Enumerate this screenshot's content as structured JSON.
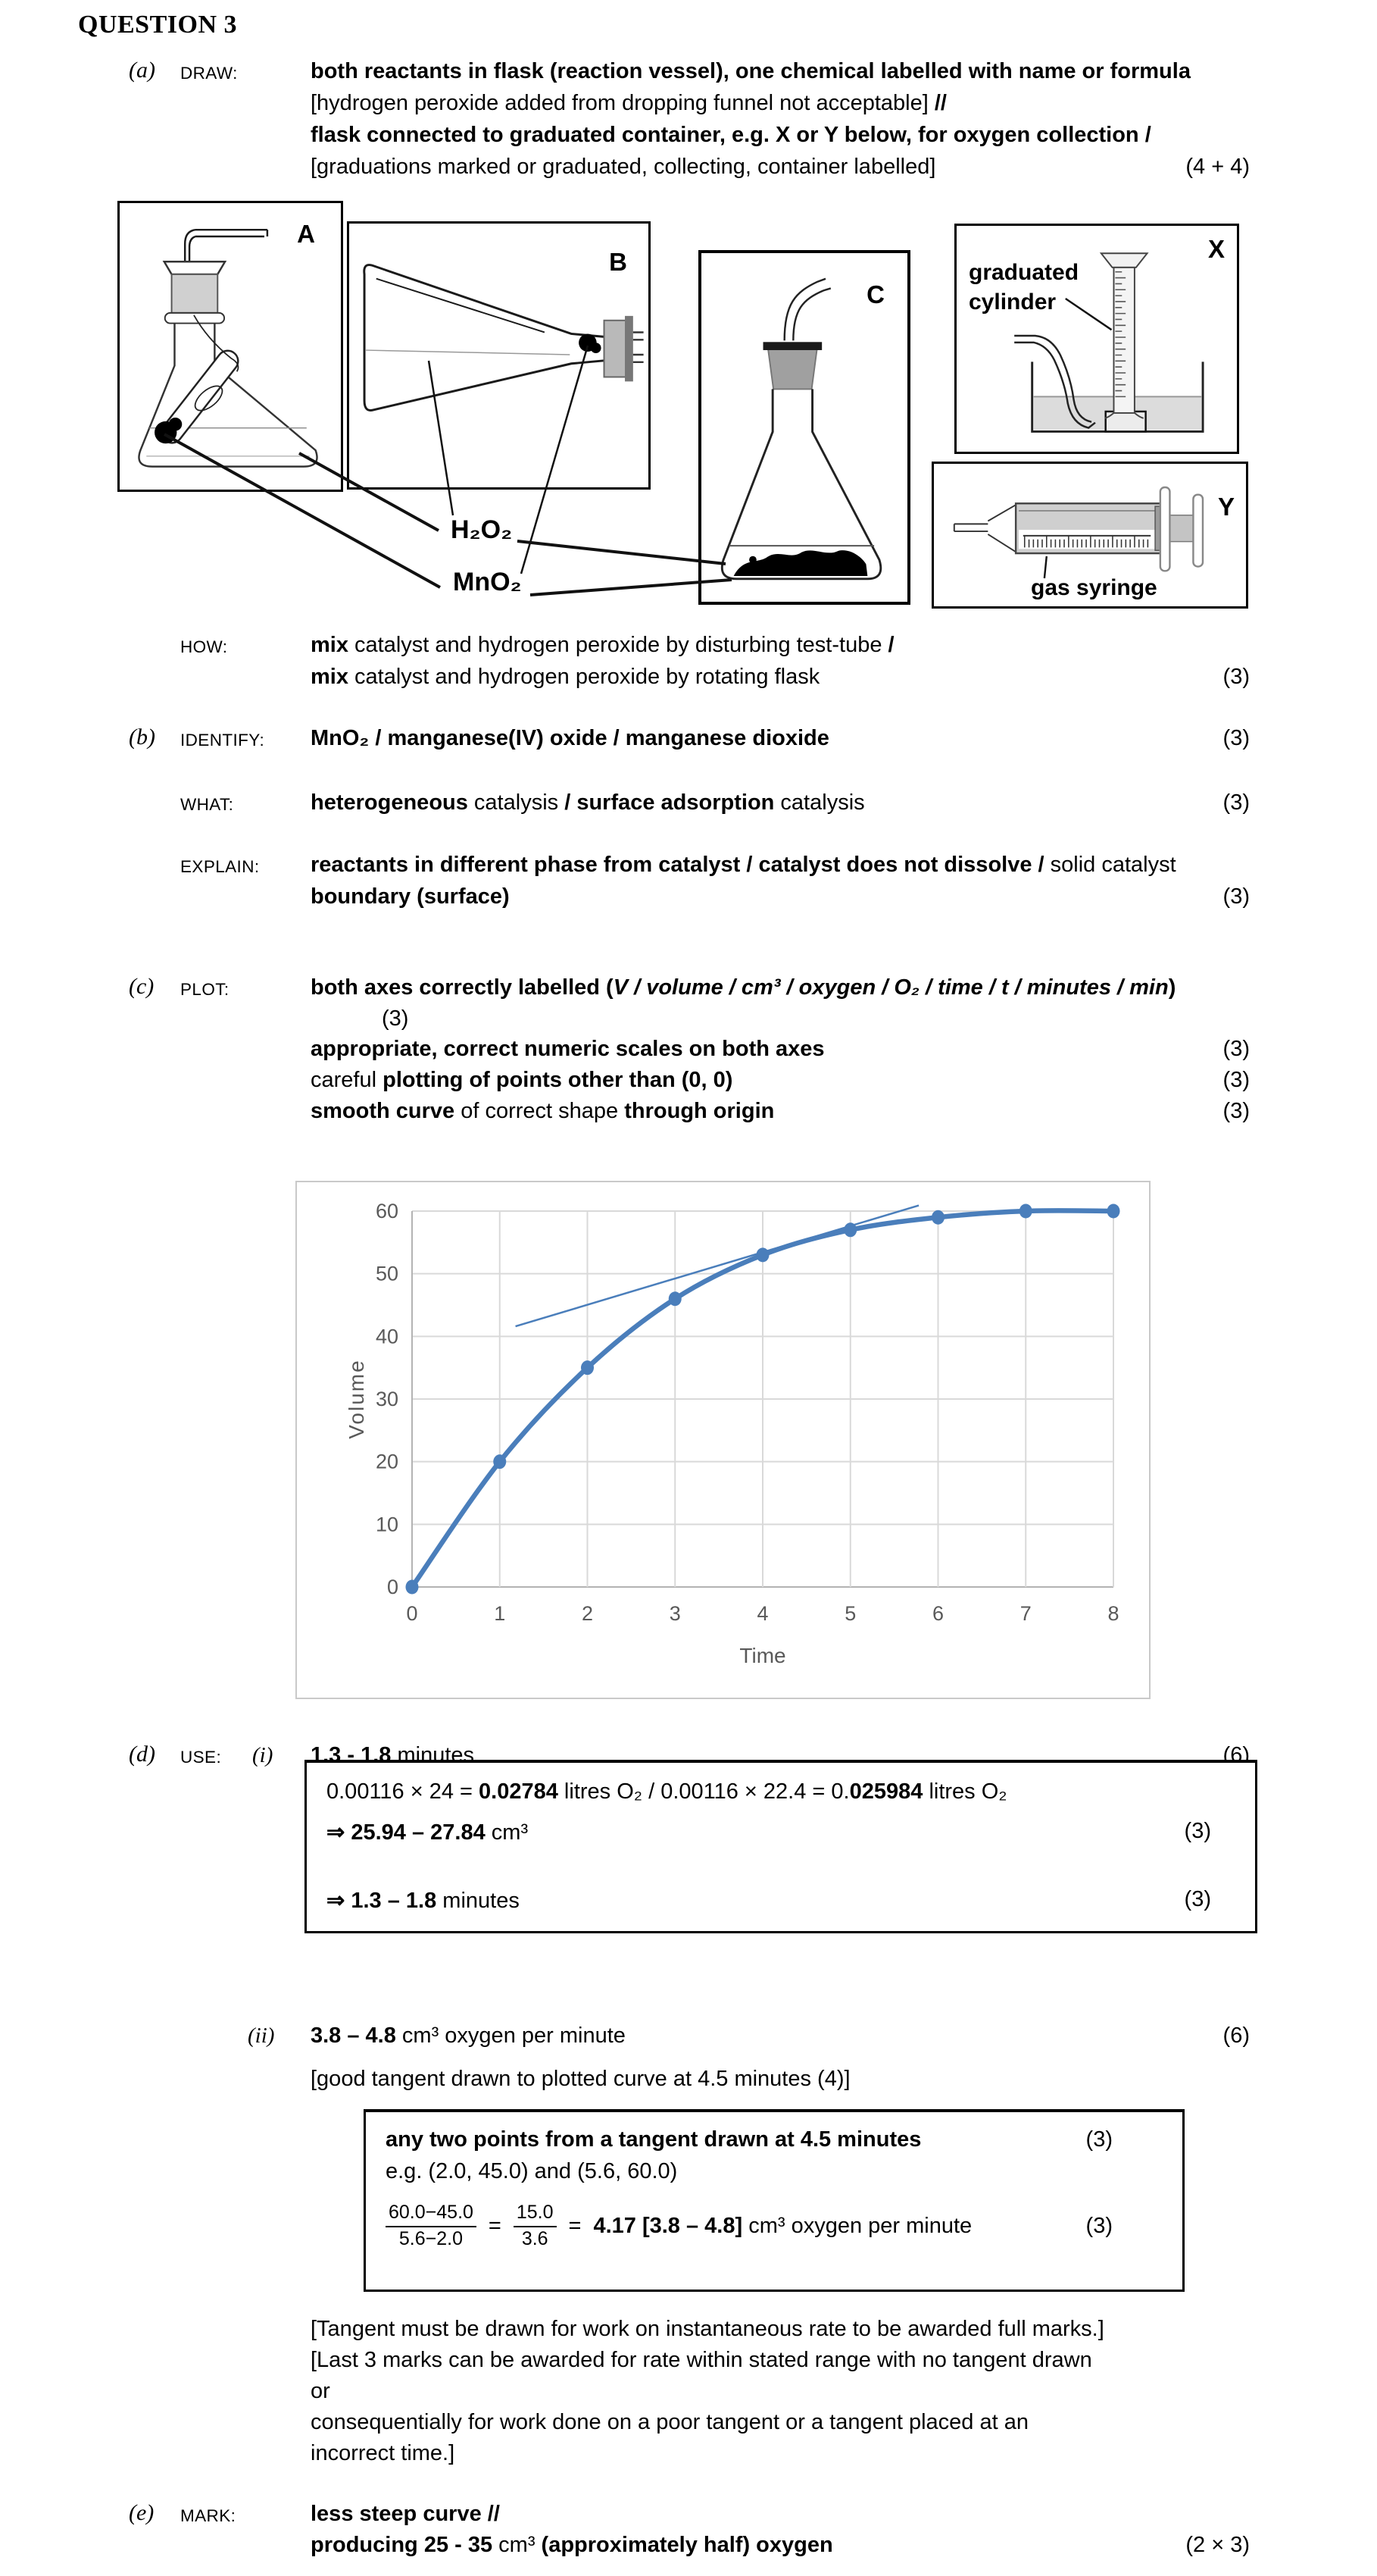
{
  "title": "QUESTION 3",
  "sections": {
    "a": {
      "letter": "(a)",
      "tag": "DRAW:",
      "lines": [
        {
          "segments": [
            {
              "t": "both reactants in flask (reaction vessel), one chemical labelled with name or formula",
              "b": true
            }
          ],
          "mark": ""
        },
        {
          "segments": [
            {
              "t": "[hydrogen peroxide added from dropping funnel not acceptable] "
            },
            {
              "t": "//",
              "b": true
            }
          ],
          "mark": ""
        },
        {
          "segments": [
            {
              "t": "flask connected to graduated container, e.g. X or Y below, for oxygen collection /",
              "b": true
            }
          ],
          "mark": ""
        },
        {
          "segments": [
            {
              "t": "[graduations marked or graduated, collecting, container labelled]"
            }
          ],
          "mark": "(4 + 4)"
        }
      ]
    },
    "how": {
      "tag": "HOW:",
      "lines": [
        {
          "segments": [
            {
              "t": "mix",
              "b": true
            },
            {
              "t": " catalyst and hydrogen peroxide by disturbing test-tube "
            },
            {
              "t": "/",
              "b": true
            }
          ],
          "mark": ""
        },
        {
          "segments": [
            {
              "t": "mix",
              "b": true
            },
            {
              "t": " catalyst and hydrogen peroxide by rotating flask"
            }
          ],
          "mark": "(3)"
        }
      ]
    },
    "b": {
      "letter": "(b)",
      "tag": "IDENTIFY:",
      "lines": [
        {
          "segments": [
            {
              "t": "MnO₂ / manganese(IV) oxide / manganese dioxide",
              "b": true
            }
          ],
          "mark": "(3)"
        }
      ]
    },
    "what": {
      "tag": "WHAT:",
      "lines": [
        {
          "segments": [
            {
              "t": "heterogeneous",
              "b": true
            },
            {
              "t": " catalysis "
            },
            {
              "t": "/ surface adsorption",
              "b": true
            },
            {
              "t": " catalysis"
            }
          ],
          "mark": "(3)"
        }
      ]
    },
    "explain": {
      "tag": "EXPLAIN:",
      "lines": [
        {
          "segments": [
            {
              "t": "reactants in different phase from catalyst / catalyst does not dissolve /",
              "b": true
            },
            {
              "t": " solid catalyst"
            }
          ],
          "mark": ""
        },
        {
          "segments": [
            {
              "t": "boundary (surface)",
              "b": true
            }
          ],
          "mark": "(3)"
        }
      ]
    },
    "c": {
      "letter": "(c)",
      "tag": "PLOT:",
      "lines": [
        {
          "segments": [
            {
              "t": "both axes correctly labelled (",
              "b": true
            },
            {
              "t": "V / volume / cm³ / oxygen / O₂ / time / t / minutes / min",
              "b": true,
              "i": true
            },
            {
              "t": ")",
              "b": true
            }
          ],
          "mark": ""
        },
        {
          "segments": [
            {
              "t": "(3)"
            }
          ],
          "mark": ""
        },
        {
          "segments": [
            {
              "t": "appropriate, correct numeric scales on both axes",
              "b": true
            }
          ],
          "mark": "(3)"
        },
        {
          "segments": [
            {
              "t": "careful "
            },
            {
              "t": "plotting of points other than (0, 0)",
              "b": true
            }
          ],
          "mark": "(3)"
        },
        {
          "segments": [
            {
              "t": "smooth curve",
              "b": true
            },
            {
              "t": " of correct shape "
            },
            {
              "t": "through origin",
              "b": true
            }
          ],
          "mark": "(3)"
        }
      ]
    },
    "d": {
      "letter": "(d)",
      "tag": "USE:",
      "numeral": "(i)",
      "line": {
        "segments": [
          {
            "t": "1.3 - 1.8",
            "b": true
          },
          {
            "t": " minutes"
          }
        ],
        "mark": "(6)"
      },
      "box": {
        "lines": [
          {
            "segments": [
              {
                "t": "0.00116 × 24 = "
              },
              {
                "t": "0.02784",
                "b": true
              },
              {
                "t": " litres O₂ / 0.00116 × 22.4 = 0."
              },
              {
                "t": "025984",
                "b": true
              },
              {
                "t": " litres O₂"
              }
            ],
            "mark": ""
          },
          {
            "segments": [
              {
                "t": "⇒ 25.94 – 27.84",
                "b": true
              },
              {
                "t": " cm³"
              }
            ],
            "mark": "(3)"
          },
          {
            "segments": [
              {
                "t": "⇒ 1.3 – 1.8",
                "b": true
              },
              {
                "t": " minutes"
              }
            ],
            "mark": "(3)"
          }
        ]
      }
    },
    "dii": {
      "numeral": "(ii)",
      "line": {
        "segments": [
          {
            "t": "3.8 – 4.8",
            "b": true
          },
          {
            "t": " cm³ oxygen per minute"
          }
        ],
        "mark": "(6)"
      },
      "note": {
        "segments": [
          {
            "t": "[good tangent drawn to plotted curve at 4.5 minutes (4)]"
          }
        ],
        "mark": ""
      },
      "box": {
        "line1": {
          "segments": [
            {
              "t": "any two points from a tangent drawn at 4.5 minutes",
              "b": true
            }
          ],
          "mark": "(3)"
        },
        "line2": {
          "segments": [
            {
              "t": "e.g. (2.0, 45.0) and (5.6, 60.0)"
            }
          ],
          "mark": ""
        },
        "frac1": {
          "num": "60.0−45.0",
          "den": "5.6−2.0"
        },
        "eq1": "=",
        "frac2": {
          "num": "15.0",
          "den": "3.6"
        },
        "eq2": "=",
        "result": {
          "segments": [
            {
              "t": "4.17 [3.8 – 4.8]",
              "b": true
            },
            {
              "t": " cm³ oxygen per minute"
            }
          ],
          "mark": "(3)"
        }
      },
      "notes": [
        "[Tangent must be drawn for work on instantaneous rate to be awarded full marks.]",
        "[Last 3 marks can be awarded for rate within stated range with no tangent drawn",
        "or",
        "consequentially for work done on a poor tangent or a tangent placed at an",
        "incorrect time.]"
      ]
    },
    "e": {
      "letter": "(e)",
      "tag": "MARK:",
      "lines": [
        {
          "segments": [
            {
              "t": "less steep curve //",
              "b": true
            }
          ],
          "mark": ""
        },
        {
          "segments": [
            {
              "t": "producing 25 - 35",
              "b": true
            },
            {
              "t": " cm³ "
            },
            {
              "t": "(approximately half) oxygen",
              "b": true
            }
          ],
          "mark": "(2 × 3)"
        }
      ]
    }
  },
  "figure": {
    "panels": [
      {
        "label": "A"
      },
      {
        "label": "B"
      },
      {
        "label": "C"
      },
      {
        "label": "X",
        "caption": "graduated cylinder"
      },
      {
        "label": "Y",
        "caption": "gas syringe"
      }
    ],
    "chem_labels": [
      "H₂O₂",
      "MnO₂"
    ]
  },
  "chart_data": {
    "type": "line",
    "title": "",
    "xlabel": "Time",
    "ylabel": "Volume",
    "x": [
      0,
      1,
      2,
      3,
      4,
      5,
      6,
      7,
      8
    ],
    "series": [
      {
        "name": "Volume",
        "values": [
          0,
          20,
          35,
          46,
          53,
          57,
          59,
          60,
          60
        ]
      }
    ],
    "xlim": [
      0,
      8
    ],
    "ylim": [
      0,
      60
    ],
    "xticks": [
      0,
      1,
      2,
      3,
      4,
      5,
      6,
      7,
      8
    ],
    "yticks": [
      0,
      10,
      20,
      30,
      40,
      50,
      60
    ],
    "grid": true,
    "legend": false,
    "tangent": {
      "x1": 1.18,
      "y1": 41.6,
      "x2": 5.78,
      "y2": 60.9,
      "through_points": [
        [
          2.0,
          45.0
        ],
        [
          5.6,
          60.0
        ]
      ]
    },
    "colors": {
      "line": "#4a7ebb",
      "grid": "#d9d9d9",
      "axis": "#b3b3b3",
      "text": "#595959",
      "border": "#c9c9c9"
    }
  }
}
